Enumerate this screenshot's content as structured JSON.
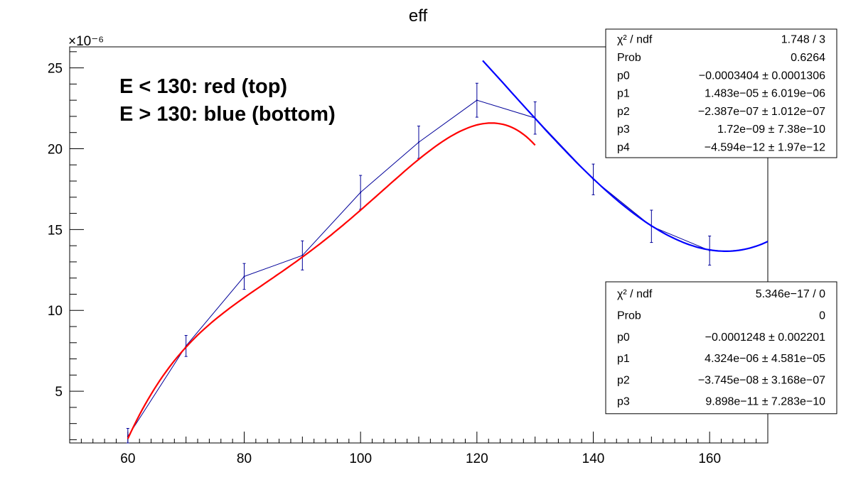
{
  "chart_data": {
    "type": "scatter",
    "title": "eff",
    "xlabel": "",
    "ylabel": "",
    "y_multiplier": "×10⁻⁶",
    "xlim": [
      50,
      170
    ],
    "ylim": [
      1.8,
      26.3
    ],
    "x_ticks": [
      "60",
      "80",
      "100",
      "120",
      "140",
      "160"
    ],
    "y_ticks": [
      "5",
      "10",
      "15",
      "20",
      "25"
    ],
    "grid": false,
    "series": [
      {
        "x": [
          60,
          70,
          80,
          90,
          100,
          110,
          120,
          130,
          140,
          150,
          160
        ],
        "y": [
          2.2,
          7.8,
          12.1,
          13.4,
          17.3,
          20.4,
          23.0,
          21.9,
          18.1,
          15.2,
          13.7
        ],
        "yerr": [
          0.5,
          0.65,
          0.8,
          0.9,
          1.05,
          1.0,
          1.05,
          1.0,
          0.95,
          1.0,
          0.9
        ],
        "color": "#000099"
      }
    ],
    "fits": [
      {
        "color": "#ff0000",
        "poly": [
          -0.0003404,
          1.483e-05,
          -2.387e-07,
          1.72e-09,
          -4.594e-12
        ],
        "range": [
          60,
          130
        ]
      },
      {
        "color": "#0000ff",
        "poly": [
          -0.0001248,
          4.324e-06,
          -3.745e-08,
          9.898e-11
        ],
        "range": [
          121,
          170
        ]
      }
    ],
    "annotations": [
      "E < 130: red (top)",
      "E > 130: blue (bottom)"
    ],
    "stat_boxes": [
      {
        "rows": [
          {
            "label": "χ² / ndf",
            "value": "1.748 / 3"
          },
          {
            "label": "Prob",
            "value": "0.6264"
          },
          {
            "label": "p0",
            "value": "−0.0003404 ± 0.0001306"
          },
          {
            "label": "p1",
            "value": "1.483e−05 ± 6.019e−06"
          },
          {
            "label": "p2",
            "value": "−2.387e−07 ± 1.012e−07"
          },
          {
            "label": "p3",
            "value": "1.72e−09 ± 7.38e−10"
          },
          {
            "label": "p4",
            "value": "−4.594e−12 ± 1.97e−12"
          }
        ]
      },
      {
        "rows": [
          {
            "label": "χ² / ndf",
            "value": "5.346e−17 / 0"
          },
          {
            "label": "Prob",
            "value": "0"
          },
          {
            "label": "p0",
            "value": "−0.0001248 ± 0.002201"
          },
          {
            "label": "p1",
            "value": "4.324e−06 ± 4.581e−05"
          },
          {
            "label": "p2",
            "value": "−3.745e−08 ± 3.168e−07"
          },
          {
            "label": "p3",
            "value": "9.898e−11 ± 7.283e−10"
          }
        ]
      }
    ]
  }
}
